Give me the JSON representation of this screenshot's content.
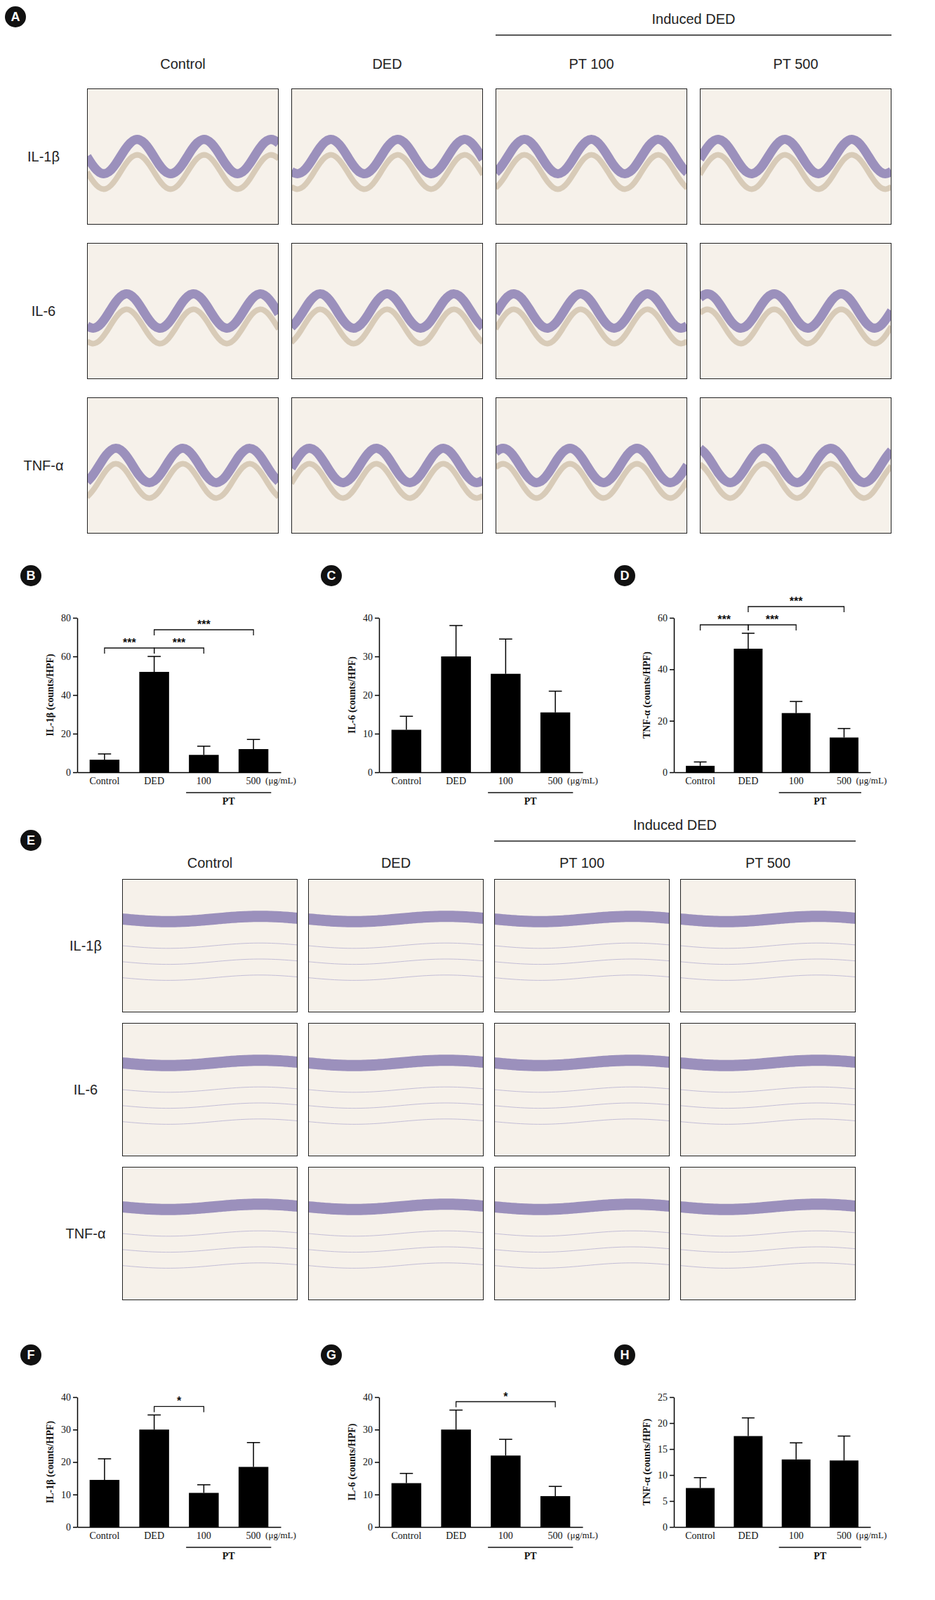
{
  "image_figures": [
    {
      "panel": "A",
      "group_label": "Induced DED",
      "group_columns": [
        "PT 100",
        "PT 500"
      ],
      "columns": [
        "Control",
        "DED",
        "PT 100",
        "PT 500"
      ],
      "rows": [
        "IL-1β",
        "IL-6",
        "TNF-α"
      ]
    },
    {
      "panel": "E",
      "group_label": "Induced DED",
      "group_columns": [
        "PT 100",
        "PT 500"
      ],
      "columns": [
        "Control",
        "DED",
        "PT 100",
        "PT 500"
      ],
      "rows": [
        "IL-1β",
        "IL-6",
        "TNF-α"
      ]
    }
  ],
  "chart_data": [
    {
      "panel": "B",
      "type": "bar",
      "categories": [
        "Control",
        "DED",
        "100",
        "500"
      ],
      "values": [
        6.5,
        52,
        9,
        12
      ],
      "errors": [
        3,
        8,
        4.5,
        5
      ],
      "color": "#000000",
      "y_label": "IL-1β (counts/HPF)",
      "ylim": [
        0,
        80
      ],
      "yticks": [
        0,
        20,
        40,
        60,
        80
      ],
      "x_group_label": "PT",
      "x_group_members": [
        "100",
        "500"
      ],
      "x_unit_label": "(μg/mL)",
      "annotations": [
        {
          "from": "Control",
          "to": "DED",
          "text": "***"
        },
        {
          "from": "DED",
          "to": "100",
          "text": "***"
        },
        {
          "from": "DED",
          "to": "500",
          "text": "***"
        }
      ]
    },
    {
      "panel": "C",
      "type": "bar",
      "categories": [
        "Control",
        "DED",
        "100",
        "500"
      ],
      "values": [
        11,
        30,
        25.5,
        15.5
      ],
      "errors": [
        3.5,
        8,
        9,
        5.5
      ],
      "color": "#000000",
      "y_label": "IL-6 (counts/HPF)",
      "ylim": [
        0,
        40
      ],
      "yticks": [
        0,
        10,
        20,
        30,
        40
      ],
      "x_group_label": "PT",
      "x_group_members": [
        "100",
        "500"
      ],
      "x_unit_label": "(μg/mL)",
      "annotations": []
    },
    {
      "panel": "D",
      "type": "bar",
      "categories": [
        "Control",
        "DED",
        "100",
        "500"
      ],
      "values": [
        2.5,
        48,
        23,
        13.5
      ],
      "errors": [
        1.5,
        6,
        4.5,
        3.5
      ],
      "color": "#000000",
      "y_label": "TNF-α (counts/HPF)",
      "ylim": [
        0,
        60
      ],
      "yticks": [
        0,
        20,
        40,
        60
      ],
      "x_group_label": "PT",
      "x_group_members": [
        "100",
        "500"
      ],
      "x_unit_label": "(μg/mL)",
      "annotations": [
        {
          "from": "Control",
          "to": "DED",
          "text": "***"
        },
        {
          "from": "DED",
          "to": "100",
          "text": "***"
        },
        {
          "from": "DED",
          "to": "500",
          "text": "***"
        }
      ]
    },
    {
      "panel": "F",
      "type": "bar",
      "categories": [
        "Control",
        "DED",
        "100",
        "500"
      ],
      "values": [
        14.5,
        30,
        10.5,
        18.5
      ],
      "errors": [
        6.5,
        4.5,
        2.5,
        7.5
      ],
      "color": "#000000",
      "y_label": "IL-1β (counts/HPF)",
      "ylim": [
        0,
        40
      ],
      "yticks": [
        0,
        10,
        20,
        30,
        40
      ],
      "x_group_label": "PT",
      "x_group_members": [
        "100",
        "500"
      ],
      "x_unit_label": "(μg/mL)",
      "annotations": [
        {
          "from": "DED",
          "to": "100",
          "text": "*"
        }
      ]
    },
    {
      "panel": "G",
      "type": "bar",
      "categories": [
        "Control",
        "DED",
        "100",
        "500"
      ],
      "values": [
        13.5,
        30,
        22,
        9.5
      ],
      "errors": [
        3,
        6,
        5,
        3
      ],
      "color": "#000000",
      "y_label": "IL-6 (counts/HPF)",
      "ylim": [
        0,
        40
      ],
      "yticks": [
        0,
        10,
        20,
        30,
        40
      ],
      "x_group_label": "PT",
      "x_group_members": [
        "100",
        "500"
      ],
      "x_unit_label": "(μg/mL)",
      "annotations": [
        {
          "from": "DED",
          "to": "500",
          "text": "*"
        }
      ]
    },
    {
      "panel": "H",
      "type": "bar",
      "categories": [
        "Control",
        "DED",
        "100",
        "500"
      ],
      "values": [
        7.5,
        17.5,
        13,
        12.8
      ],
      "errors": [
        2,
        3.5,
        3.2,
        4.7
      ],
      "color": "#000000",
      "y_label": "TNF-α (counts/HPF)",
      "ylim": [
        0,
        25
      ],
      "yticks": [
        0,
        5,
        10,
        15,
        20,
        25
      ],
      "x_group_label": "PT",
      "x_group_members": [
        "100",
        "500"
      ],
      "x_unit_label": "(μg/mL)",
      "annotations": []
    }
  ]
}
